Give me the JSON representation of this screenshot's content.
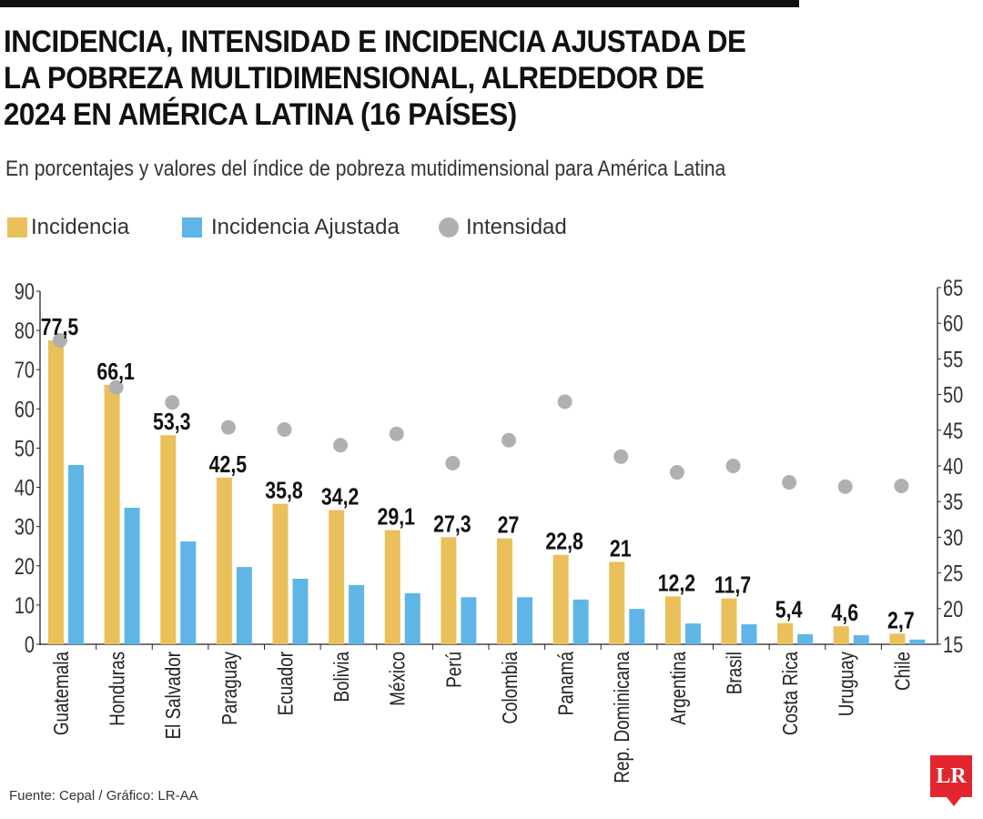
{
  "chart_data": {
    "type": "bar",
    "title": "INCIDENCIA, INTENSIDAD E INCIDENCIA AJUSTADA DE LA POBREZA MULTIDIMENSIONAL, ALREDEDOR DE 2024 EN AMÉRICA LATINA (16 PAÍSES)",
    "subtitle": "En porcentajes y valores del índice de pobreza mutidimensional para América Latina",
    "categories": [
      "Guatemala",
      "Honduras",
      "El Salvador",
      "Paraguay",
      "Ecuador",
      "Bolivia",
      "México",
      "Perú",
      "Colombia",
      "Panamá",
      "Rep. Dominicana",
      "Argentina",
      "Brasil",
      "Costa Rica",
      "Uruguay",
      "Chile"
    ],
    "series": [
      {
        "name": "Incidencia",
        "type": "bar",
        "axis": "left",
        "color": "#e9c05a",
        "values": [
          77.5,
          66.1,
          53.3,
          42.5,
          35.8,
          34.2,
          29.1,
          27.3,
          27,
          22.8,
          21,
          12.2,
          11.7,
          5.4,
          4.6,
          2.7
        ],
        "labels": [
          "77,5",
          "66,1",
          "53,3",
          "42,5",
          "35,8",
          "34,2",
          "29,1",
          "27,3",
          "27",
          "22,8",
          "21",
          "12,2",
          "11,7",
          "5,4",
          "4,6",
          "2,7"
        ]
      },
      {
        "name": "Incidencia Ajustada",
        "type": "bar",
        "axis": "left",
        "color": "#5fb6e6",
        "values": [
          45.7,
          34.8,
          26.2,
          19.7,
          16.7,
          15.1,
          13,
          12,
          12,
          11.4,
          9,
          5.3,
          5.1,
          2.6,
          2.3,
          1.2
        ]
      },
      {
        "name": "Intensidad",
        "type": "scatter",
        "axis": "right",
        "color": "#b0b0b0",
        "values": [
          57.6,
          51,
          48.9,
          45.4,
          45.1,
          42.9,
          44.5,
          40.4,
          43.6,
          49,
          41.3,
          39.1,
          40,
          37.7,
          37.1,
          37.2
        ]
      }
    ],
    "y_left": {
      "range": [
        0,
        90
      ],
      "ticks": [
        "0",
        "10",
        "20",
        "30",
        "40",
        "50",
        "60",
        "70",
        "80",
        "90"
      ]
    },
    "y_right": {
      "range": [
        15,
        65
      ],
      "ticks": [
        "15",
        "20",
        "25",
        "30",
        "35",
        "40",
        "45",
        "50",
        "55",
        "60",
        "65"
      ]
    },
    "grid": false,
    "legend": "top-left"
  },
  "footer": {
    "source": "Fuente: Cepal / Gráfico: LR-AA",
    "logo": "LR"
  }
}
